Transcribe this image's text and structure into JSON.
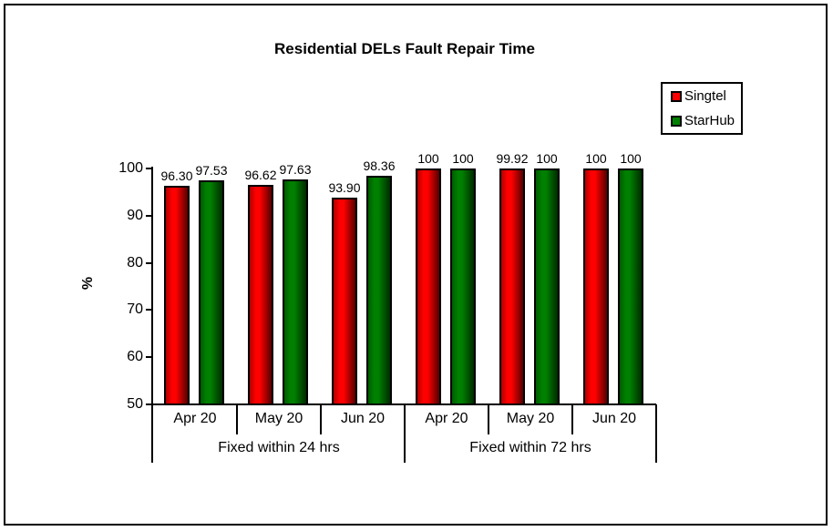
{
  "title": "Residential DELs Fault Repair Time",
  "legend": {
    "items": [
      {
        "label": "Singtel",
        "color": "#ff0000"
      },
      {
        "label": "StarHub",
        "color": "#008000"
      }
    ]
  },
  "chart_data": {
    "type": "bar",
    "title": "Residential DELs Fault Repair Time",
    "xlabel": "",
    "ylabel": "%",
    "ylim": [
      50,
      100
    ],
    "yticks": [
      50,
      60,
      70,
      80,
      90,
      100
    ],
    "grid": false,
    "legend_position": "top-right",
    "categories": [
      "Apr 20",
      "May 20",
      "Jun 20",
      "Apr 20",
      "May 20",
      "Jun 20"
    ],
    "group_labels": [
      "Fixed within 24 hrs",
      "Fixed within 72 hrs"
    ],
    "groups": [
      [
        0,
        1,
        2
      ],
      [
        3,
        4,
        5
      ]
    ],
    "series": [
      {
        "name": "Singtel",
        "color": "#ff0000",
        "color_left_shade": "#b00000",
        "color_right_shade": "#560000",
        "values": [
          96.3,
          96.62,
          93.9,
          100,
          99.92,
          100
        ],
        "labels": [
          "96.30",
          "96.62",
          "93.90",
          "100",
          "99.92",
          "100"
        ]
      },
      {
        "name": "StarHub",
        "color": "#008000",
        "color_left_shade": "#005c00",
        "color_right_shade": "#002b00",
        "values": [
          97.53,
          97.63,
          98.36,
          100,
          100,
          100
        ],
        "labels": [
          "97.53",
          "97.63",
          "98.36",
          "100",
          "100",
          "100"
        ]
      }
    ]
  }
}
